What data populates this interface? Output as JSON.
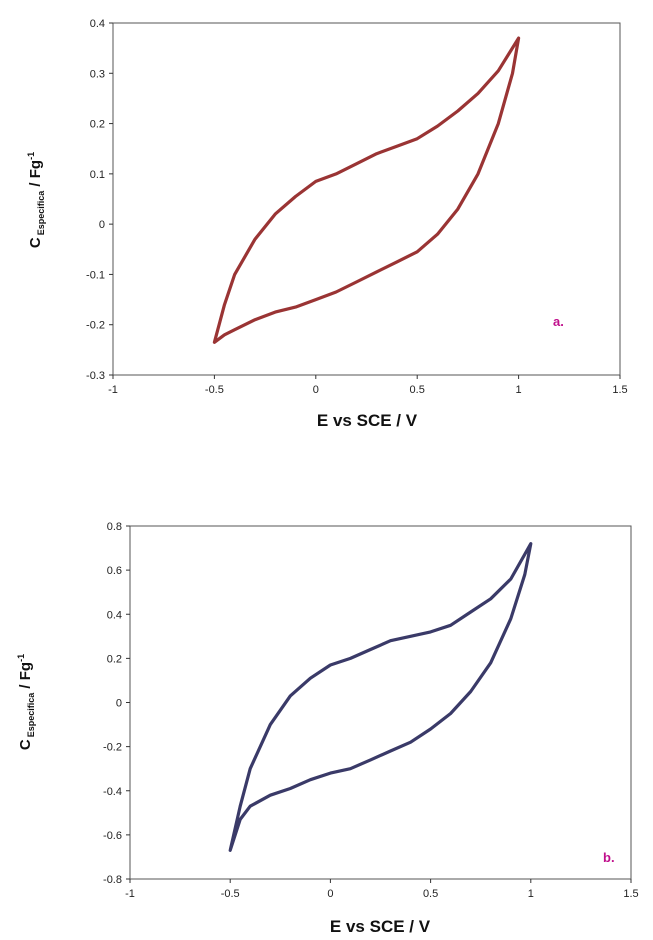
{
  "colors": {
    "panel_a": "#9a3434",
    "panel_b": "#3a3a68",
    "panel_label": "#c0108c",
    "frame": "#555555"
  },
  "chart_data": [
    {
      "type": "line",
      "panel_label": "a.",
      "xlabel": "E vs SCE / V",
      "ylabel_main": "C",
      "ylabel_sub": "Especifica",
      "ylabel_tail": " / Fg",
      "ylabel_sup": "-1",
      "xlim": [
        -1,
        1.5
      ],
      "ylim": [
        -0.3,
        0.4
      ],
      "xticks": [
        "-1",
        "-0.5",
        "0",
        "0.5",
        "1",
        "1.5"
      ],
      "xtick_values": [
        -1,
        -0.5,
        0,
        0.5,
        1,
        1.5
      ],
      "yticks": [
        "0.4",
        "0.3",
        "0.2",
        "0.1",
        "0",
        "-0.1",
        "-0.2",
        "-0.3"
      ],
      "ytick_values": [
        0.4,
        0.3,
        0.2,
        0.1,
        0,
        -0.1,
        -0.2,
        -0.3
      ],
      "series": [
        {
          "x": [
            -0.5,
            -0.45,
            -0.4,
            -0.3,
            -0.2,
            -0.1,
            0.0,
            0.1,
            0.2,
            0.3,
            0.4,
            0.5,
            0.6,
            0.7,
            0.8,
            0.9,
            1.0,
            0.97,
            0.9,
            0.8,
            0.7,
            0.6,
            0.5,
            0.4,
            0.3,
            0.2,
            0.1,
            0.0,
            -0.1,
            -0.2,
            -0.3,
            -0.4,
            -0.45,
            -0.5
          ],
          "y": [
            -0.235,
            -0.16,
            -0.1,
            -0.03,
            0.02,
            0.055,
            0.085,
            0.1,
            0.12,
            0.14,
            0.155,
            0.17,
            0.195,
            0.225,
            0.26,
            0.305,
            0.37,
            0.3,
            0.2,
            0.1,
            0.03,
            -0.02,
            -0.055,
            -0.075,
            -0.095,
            -0.115,
            -0.135,
            -0.15,
            -0.165,
            -0.175,
            -0.19,
            -0.21,
            -0.22,
            -0.235
          ]
        }
      ]
    },
    {
      "type": "line",
      "panel_label": "b.",
      "xlabel": "E vs SCE / V",
      "ylabel_main": "C",
      "ylabel_sub": "Especifica",
      "ylabel_tail": " / Fg",
      "ylabel_sup": "-1",
      "xlim": [
        -1,
        1.5
      ],
      "ylim": [
        -0.8,
        0.8
      ],
      "xticks": [
        "-1",
        "-0.5",
        "0",
        "0.5",
        "1",
        "1.5"
      ],
      "xtick_values": [
        -1,
        -0.5,
        0,
        0.5,
        1,
        1.5
      ],
      "yticks": [
        "0.8",
        "0.6",
        "0.4",
        "0.2",
        "0",
        "-0.2",
        "-0.4",
        "-0.6",
        "-0.8"
      ],
      "ytick_values": [
        0.8,
        0.6,
        0.4,
        0.2,
        0,
        -0.2,
        -0.4,
        -0.6,
        -0.8
      ],
      "series": [
        {
          "x": [
            -0.5,
            -0.45,
            -0.4,
            -0.3,
            -0.2,
            -0.1,
            0.0,
            0.1,
            0.2,
            0.3,
            0.4,
            0.5,
            0.6,
            0.7,
            0.8,
            0.9,
            1.0,
            0.97,
            0.9,
            0.8,
            0.7,
            0.6,
            0.5,
            0.4,
            0.3,
            0.2,
            0.1,
            0.0,
            -0.1,
            -0.2,
            -0.3,
            -0.4,
            -0.45,
            -0.5
          ],
          "y": [
            -0.67,
            -0.47,
            -0.3,
            -0.1,
            0.03,
            0.11,
            0.17,
            0.2,
            0.24,
            0.28,
            0.3,
            0.32,
            0.35,
            0.41,
            0.47,
            0.56,
            0.72,
            0.58,
            0.38,
            0.18,
            0.05,
            -0.05,
            -0.12,
            -0.18,
            -0.22,
            -0.26,
            -0.3,
            -0.32,
            -0.35,
            -0.39,
            -0.42,
            -0.47,
            -0.53,
            -0.67
          ]
        }
      ]
    }
  ]
}
